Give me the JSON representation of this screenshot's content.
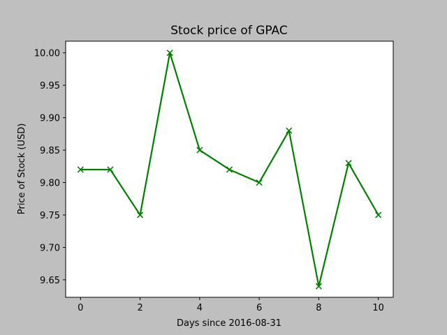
{
  "chart_data": {
    "type": "line",
    "title": "Stock price of GPAC",
    "xlabel": "Days since 2016-08-31",
    "ylabel": "Price of Stock (USD)",
    "x": [
      0,
      1,
      2,
      3,
      4,
      5,
      6,
      7,
      8,
      9,
      10
    ],
    "series": [
      {
        "values": [
          9.82,
          9.82,
          9.75,
          10.0,
          9.85,
          9.82,
          9.8,
          9.88,
          9.64,
          9.83,
          9.75
        ],
        "color": "#008000",
        "marker": "x"
      }
    ],
    "xlim": [
      -0.5,
      10.5
    ],
    "ylim": [
      9.623,
      10.018
    ],
    "xticks": [
      0,
      2,
      4,
      6,
      8,
      10
    ],
    "xtick_labels": [
      "0",
      "2",
      "4",
      "6",
      "8",
      "10"
    ],
    "yticks": [
      9.65,
      9.7,
      9.75,
      9.8,
      9.85,
      9.9,
      9.95,
      10.0
    ],
    "ytick_labels": [
      "9.65",
      "9.70",
      "9.75",
      "9.80",
      "9.85",
      "9.90",
      "9.95",
      "10.00"
    ],
    "grid": false,
    "legend": false
  }
}
